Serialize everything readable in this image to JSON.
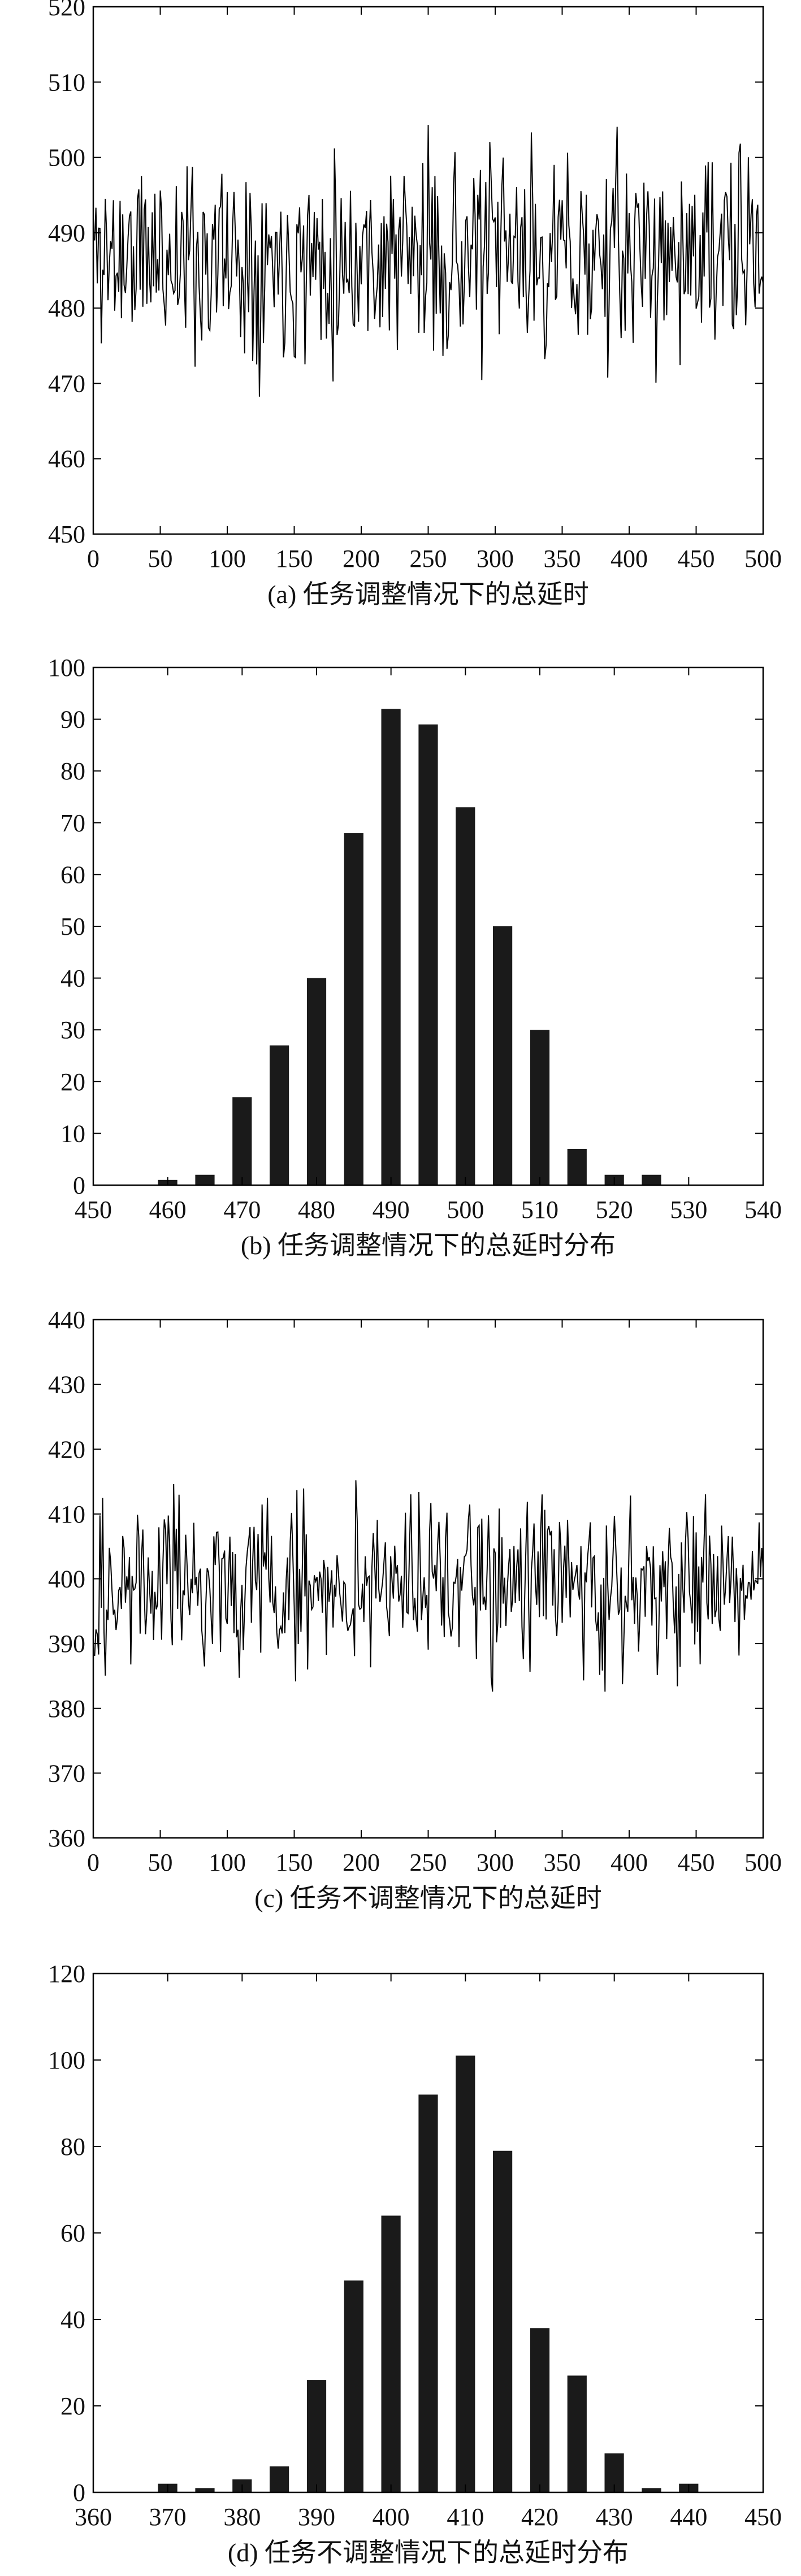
{
  "chart_data": [
    {
      "type": "line",
      "caption": "(a) 任务调整情况下的总延时",
      "xlim": [
        0,
        500
      ],
      "ylim": [
        450,
        520
      ],
      "xticks": [
        0,
        50,
        100,
        150,
        200,
        250,
        300,
        350,
        400,
        450,
        500
      ],
      "yticks": [
        450,
        460,
        470,
        480,
        490,
        500,
        510,
        520
      ],
      "grid": false,
      "noise": {
        "n": 500,
        "mean": 487,
        "spread": 12,
        "min": 460,
        "max": 515,
        "seed": 11
      },
      "series": [
        {
          "color": "#000000"
        }
      ]
    },
    {
      "type": "bar",
      "caption": "(b) 任务调整情况下的总延时分布",
      "xlim": [
        450,
        540
      ],
      "ylim": [
        0,
        100
      ],
      "xticks": [
        450,
        460,
        470,
        480,
        490,
        500,
        510,
        520,
        530,
        540
      ],
      "yticks": [
        0,
        10,
        20,
        30,
        40,
        50,
        60,
        70,
        80,
        90,
        100
      ],
      "bar_width": 2.6,
      "grid": false,
      "x": [
        460,
        465,
        470,
        475,
        480,
        485,
        490,
        495,
        500,
        505,
        510,
        515,
        520,
        525
      ],
      "values": [
        1,
        2,
        17,
        27,
        40,
        68,
        92,
        89,
        73,
        50,
        30,
        7,
        2,
        2
      ],
      "color": "#1a1a1a"
    },
    {
      "type": "line",
      "caption": "(c) 任务不调整情况下的总延时",
      "xlim": [
        0,
        500
      ],
      "ylim": [
        360,
        440
      ],
      "xticks": [
        0,
        50,
        100,
        150,
        200,
        250,
        300,
        350,
        400,
        450,
        500
      ],
      "yticks": [
        360,
        370,
        380,
        390,
        400,
        410,
        420,
        430,
        440
      ],
      "grid": false,
      "noise": {
        "n": 500,
        "mean": 399,
        "spread": 12,
        "min": 370,
        "max": 430,
        "seed": 29
      },
      "series": [
        {
          "color": "#000000"
        }
      ]
    },
    {
      "type": "bar",
      "caption": "(d) 任务不调整情况下的总延时分布",
      "xlim": [
        360,
        450
      ],
      "ylim": [
        0,
        120
      ],
      "xticks": [
        360,
        370,
        380,
        390,
        400,
        410,
        420,
        430,
        440,
        450
      ],
      "yticks": [
        0,
        20,
        40,
        60,
        80,
        100,
        120
      ],
      "bar_width": 2.6,
      "grid": false,
      "x": [
        370,
        375,
        380,
        385,
        390,
        395,
        400,
        405,
        410,
        415,
        420,
        425,
        430,
        435,
        440
      ],
      "values": [
        2,
        1,
        3,
        6,
        26,
        49,
        64,
        92,
        101,
        79,
        38,
        27,
        9,
        1,
        2
      ],
      "color": "#1a1a1a"
    }
  ]
}
